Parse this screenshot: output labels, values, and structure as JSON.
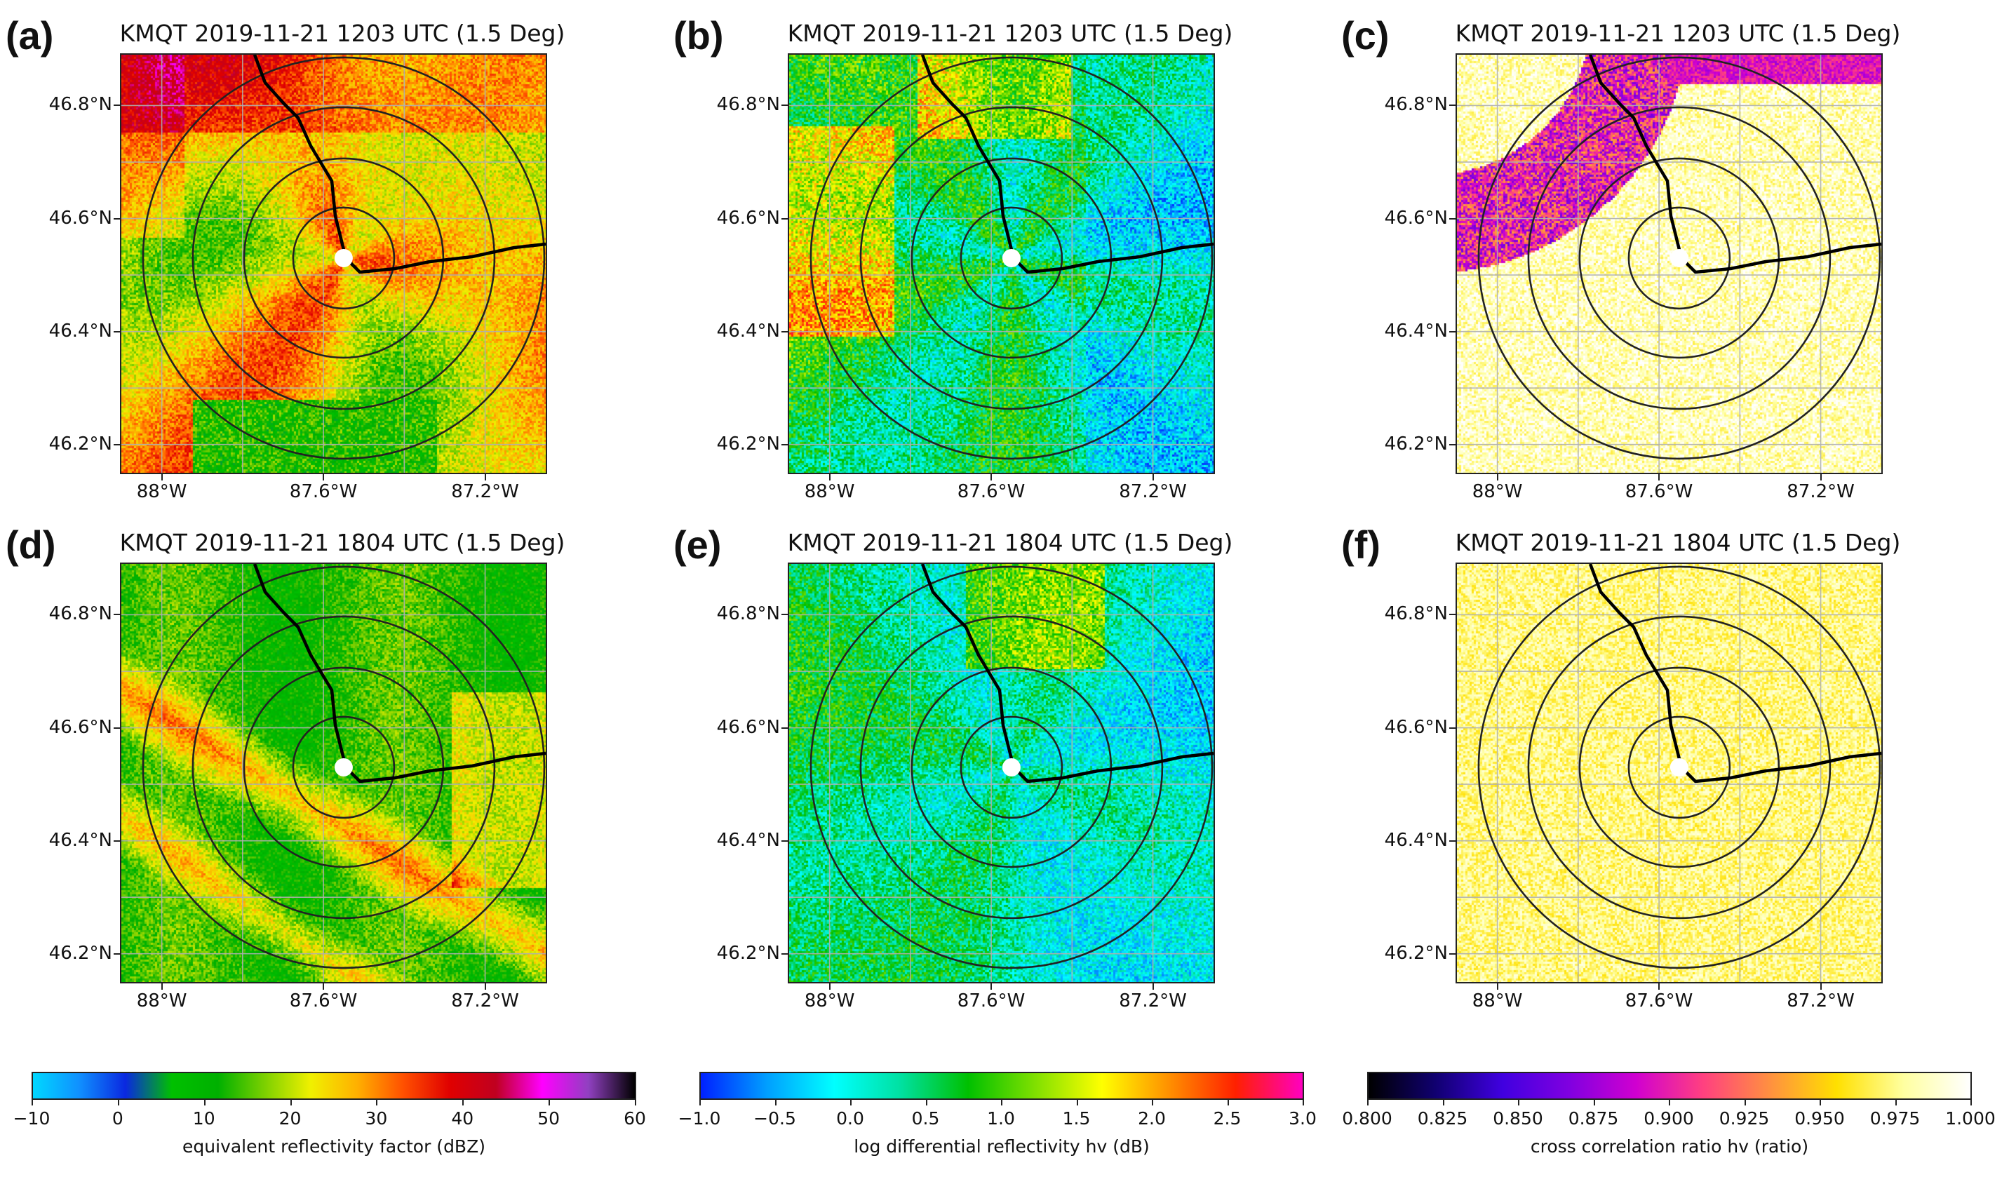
{
  "figure": {
    "panels": [
      {
        "letter": "(a)",
        "title": "KMQT 2019-11-21 1203 UTC (1.5 Deg)",
        "field": "reflectivity",
        "time": "1203"
      },
      {
        "letter": "(b)",
        "title": "KMQT 2019-11-21 1203 UTC (1.5 Deg)",
        "field": "zdr",
        "time": "1203"
      },
      {
        "letter": "(c)",
        "title": "KMQT 2019-11-21 1203 UTC (1.5 Deg)",
        "field": "rhohv",
        "time": "1203"
      },
      {
        "letter": "(d)",
        "title": "KMQT 2019-11-21 1804 UTC (1.5 Deg)",
        "field": "reflectivity",
        "time": "1804"
      },
      {
        "letter": "(e)",
        "title": "KMQT 2019-11-21 1804 UTC (1.5 Deg)",
        "field": "zdr",
        "time": "1804"
      },
      {
        "letter": "(f)",
        "title": "KMQT 2019-11-21 1804 UTC (1.5 Deg)",
        "field": "rhohv",
        "time": "1804"
      }
    ],
    "map": {
      "lat_ticks": [
        "46.8°N",
        "46.6°N",
        "46.4°N",
        "46.2°N"
      ],
      "lat_values": [
        46.8,
        46.6,
        46.4,
        46.2
      ],
      "lon_ticks": [
        "88°W",
        "87.6°W",
        "87.2°W"
      ],
      "lon_values": [
        -88.0,
        -87.6,
        -87.2
      ],
      "lon_range": [
        -88.1,
        -87.05
      ],
      "lat_range": [
        46.15,
        46.89
      ],
      "radar_site": {
        "lon": -87.55,
        "lat": 46.53
      },
      "range_ring_count": 4,
      "gridlines": true
    },
    "colorbars": [
      {
        "label": "equivalent reflectivity factor (dBZ)",
        "range": [
          -10,
          60
        ],
        "ticks": [
          "−10",
          "0",
          "10",
          "20",
          "30",
          "40",
          "50",
          "60"
        ],
        "tick_values": [
          -10,
          0,
          10,
          20,
          30,
          40,
          50,
          60
        ],
        "colors": [
          "#00d8ff",
          "#1090ff",
          "#0a28e0",
          "#00c000",
          "#00b000",
          "#7cd000",
          "#f0f000",
          "#ffb000",
          "#ff5000",
          "#e00000",
          "#c00020",
          "#ff00ff",
          "#9040c0",
          "#000000"
        ]
      },
      {
        "label": "log differential reflectivity hv (dB)",
        "range": [
          -1.0,
          3.0
        ],
        "ticks": [
          "−1.0",
          "−0.5",
          "0.0",
          "0.5",
          "1.0",
          "1.5",
          "2.0",
          "2.5",
          "3.0"
        ],
        "tick_values": [
          -1.0,
          -0.5,
          0.0,
          0.5,
          1.0,
          1.5,
          2.0,
          2.5,
          3.0
        ],
        "colors": [
          "#0020ff",
          "#00a0ff",
          "#00ffff",
          "#00e0a0",
          "#00c000",
          "#80e000",
          "#ffff00",
          "#ff9000",
          "#ff2000",
          "#ff00c0"
        ]
      },
      {
        "label": "cross correlation ratio hv (ratio)",
        "range": [
          0.8,
          1.0
        ],
        "ticks": [
          "0.800",
          "0.825",
          "0.850",
          "0.875",
          "0.900",
          "0.925",
          "0.950",
          "0.975",
          "1.000"
        ],
        "tick_values": [
          0.8,
          0.825,
          0.85,
          0.875,
          0.9,
          0.925,
          0.95,
          0.975,
          1.0
        ],
        "colors": [
          "#000000",
          "#100070",
          "#4000e0",
          "#8000e0",
          "#d000d0",
          "#ff4080",
          "#ff9040",
          "#ffe000",
          "#ffffa0",
          "#ffffff"
        ]
      }
    ]
  }
}
